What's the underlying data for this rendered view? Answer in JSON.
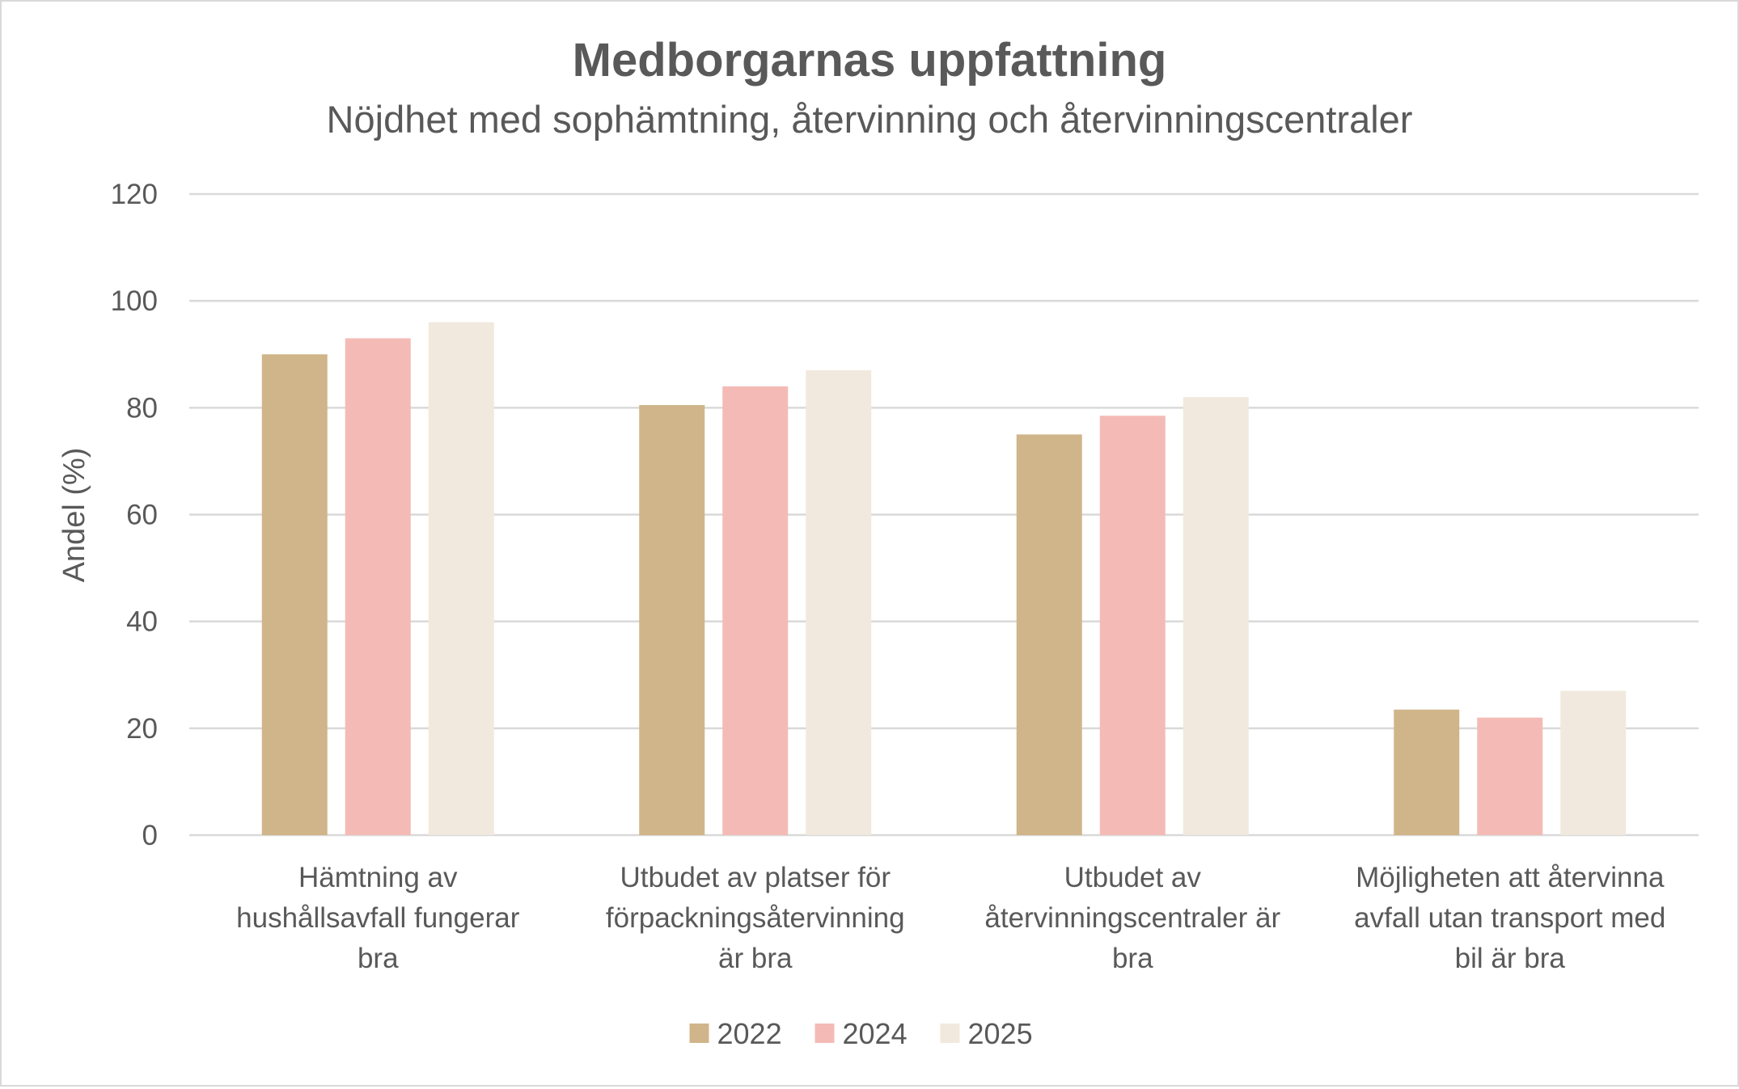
{
  "chart_data": {
    "type": "bar",
    "title": "Medborgarnas uppfattning",
    "subtitle": "Nöjdhet med sophämtning, återvinning och återvinningscentraler",
    "xlabel": "",
    "ylabel": "Andel (%)",
    "ylim": [
      0,
      120
    ],
    "yticks": [
      0,
      20,
      40,
      60,
      80,
      100,
      120
    ],
    "grid": true,
    "legend_position": "bottom",
    "categories": [
      [
        "Hämtning av",
        "hushållsavfall fungerar",
        "bra"
      ],
      [
        "Utbudet av platser för",
        "förpackningsåtervinning",
        "är bra"
      ],
      [
        "Utbudet av",
        "återvinningscentraler är",
        "bra"
      ],
      [
        "Möjligheten att återvinna",
        "avfall utan transport med",
        "bil är bra"
      ]
    ],
    "series": [
      {
        "name": "2022",
        "color": "#d0b58a",
        "values": [
          90,
          80.5,
          75,
          23.5
        ]
      },
      {
        "name": "2024",
        "color": "#f4bbb6",
        "values": [
          93,
          84,
          78.5,
          22
        ]
      },
      {
        "name": "2025",
        "color": "#f1e9de",
        "values": [
          96,
          87,
          82,
          27
        ]
      }
    ],
    "colors": {
      "gridline": "#d9d9d9",
      "text": "#595959"
    }
  }
}
